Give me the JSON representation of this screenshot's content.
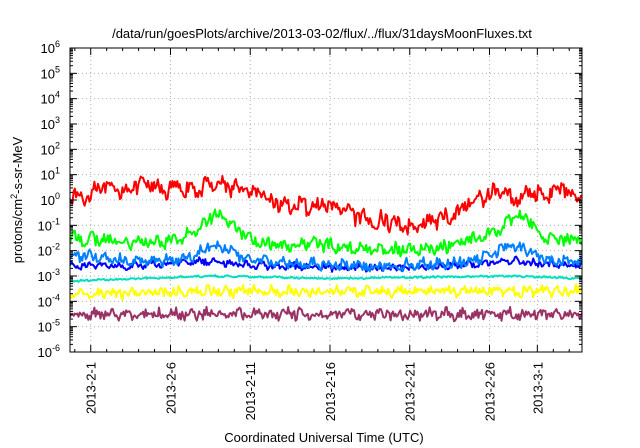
{
  "chart_data": {
    "type": "line",
    "title": "/data/run/goesPlots/archive/2013-03-02/flux/../flux/31daysMoonFluxes.txt",
    "xlabel": "Coordinated Universal Time (UTC)",
    "ylabel": "protons/cm2-s-sr-MeV",
    "yscale": "log",
    "ylim_exponent": [
      -6,
      6
    ],
    "y_tick_labels": [
      "10^-6",
      "10^-5",
      "10^-4",
      "10^-3",
      "10^-2",
      "10^-1",
      "10^0",
      "10^1",
      "10^2",
      "10^3",
      "10^4",
      "10^5",
      "10^6"
    ],
    "x_tick_labels": [
      "2013-2-1",
      "2013-2-6",
      "2013-2-11",
      "2013-2-16",
      "2013-2-21",
      "2013-2-26",
      "2013-3-1"
    ],
    "x_ticks_day": [
      1,
      6,
      11,
      16,
      21,
      26,
      29
    ],
    "xlim_day": [
      -0.3,
      31.8
    ],
    "grid": true,
    "series": [
      {
        "color": "#ff0000",
        "days": [
          -0.3,
          0.5,
          1.5,
          2.5,
          3.5,
          4.5,
          5.5,
          6.5,
          7.5,
          8.5,
          9.5,
          10.5,
          11.5,
          12.5,
          13.5,
          14.5,
          15.5,
          16.5,
          17.5,
          18.5,
          19.5,
          20.5,
          21.5,
          22.5,
          23.5,
          24.5,
          25.5,
          26.5,
          27.5,
          28.5,
          29.5,
          30.5,
          31.8
        ],
        "log10_values": [
          0.3,
          0.0,
          0.6,
          0.3,
          0.5,
          0.6,
          0.4,
          0.5,
          0.3,
          0.7,
          0.6,
          0.4,
          0.2,
          -0.1,
          -0.2,
          -0.3,
          -0.2,
          -0.3,
          -0.6,
          -0.9,
          -0.8,
          -1.0,
          -1.0,
          -0.8,
          -0.7,
          -0.2,
          0.1,
          0.4,
          0.0,
          0.3,
          0.2,
          0.5,
          0.2
        ],
        "noise": 0.45
      },
      {
        "color": "#00ff00",
        "days": [
          -0.3,
          2.0,
          4.0,
          6.0,
          7.0,
          8.0,
          8.7,
          9.5,
          10.5,
          11.5,
          13.0,
          15.0,
          17.0,
          19.0,
          21.0,
          23.0,
          24.5,
          25.5,
          26.5,
          27.5,
          28.5,
          29.5,
          31.8
        ],
        "log10_values": [
          -1.5,
          -1.6,
          -1.7,
          -1.6,
          -1.4,
          -1.0,
          -0.5,
          -0.8,
          -1.3,
          -1.7,
          -1.8,
          -1.7,
          -1.9,
          -1.9,
          -2.0,
          -1.9,
          -1.6,
          -1.4,
          -1.2,
          -0.7,
          -0.8,
          -1.5,
          -1.6
        ],
        "noise": 0.35
      },
      {
        "color": "#0080ff",
        "days": [
          -0.3,
          2.0,
          4.0,
          6.0,
          7.5,
          8.5,
          9.5,
          10.5,
          12.0,
          14.0,
          17.0,
          20.0,
          23.0,
          25.0,
          26.5,
          27.5,
          28.5,
          29.5,
          31.8
        ],
        "log10_values": [
          -2.2,
          -2.3,
          -2.4,
          -2.4,
          -2.2,
          -1.7,
          -1.9,
          -2.3,
          -2.4,
          -2.5,
          -2.6,
          -2.6,
          -2.5,
          -2.4,
          -2.0,
          -1.8,
          -2.0,
          -2.4,
          -2.4
        ],
        "noise": 0.3
      },
      {
        "color": "#0000ff",
        "days": [
          -0.3,
          4.0,
          8.5,
          9.5,
          12.0,
          18.0,
          24.0,
          27.5,
          28.5,
          31.8
        ],
        "log10_values": [
          -2.6,
          -2.6,
          -2.4,
          -2.5,
          -2.6,
          -2.7,
          -2.6,
          -2.4,
          -2.5,
          -2.6
        ],
        "noise": 0.2
      },
      {
        "color": "#00e0c0",
        "days": [
          -0.3,
          8.5,
          16.0,
          27.5,
          31.8
        ],
        "log10_values": [
          -3.2,
          -3.0,
          -3.1,
          -3.0,
          -3.1
        ],
        "noise": 0.05
      },
      {
        "color": "#ffff00",
        "days": [
          -0.3,
          10.0,
          20.0,
          31.8
        ],
        "log10_values": [
          -3.7,
          -3.6,
          -3.6,
          -3.6
        ],
        "noise": 0.28
      },
      {
        "color": "#993366",
        "days": [
          -0.3,
          10.0,
          20.0,
          31.8
        ],
        "log10_values": [
          -4.55,
          -4.5,
          -4.5,
          -4.5
        ],
        "noise": 0.3
      }
    ]
  }
}
